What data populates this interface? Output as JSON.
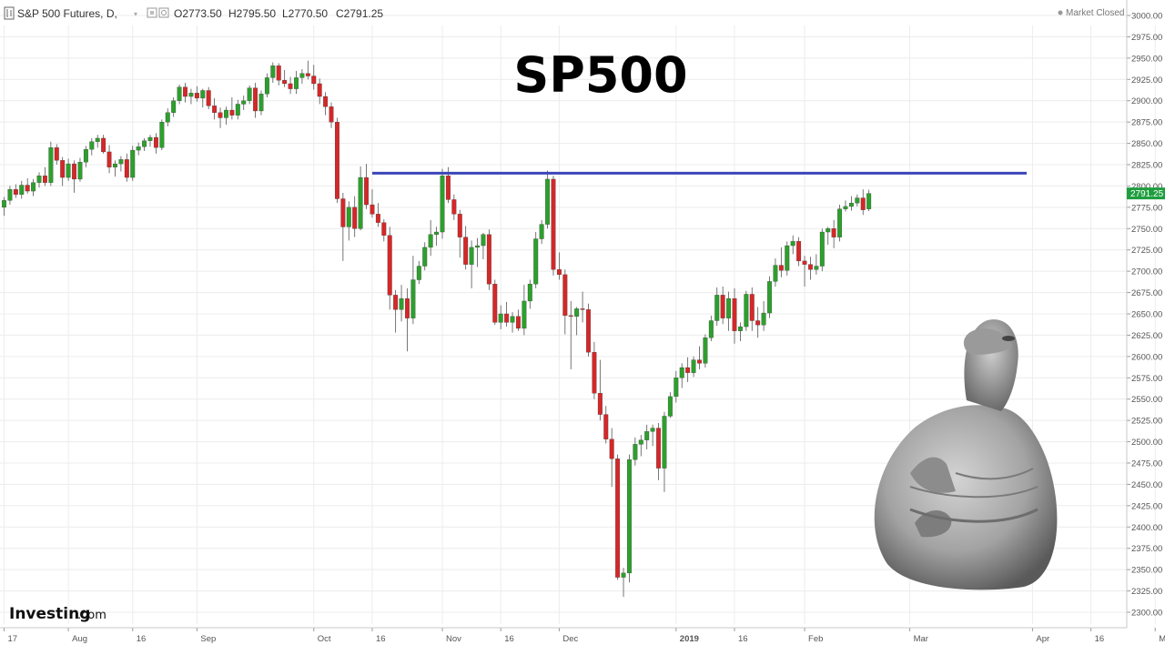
{
  "header": {
    "symbol": "S&P 500 Futures, D,",
    "open": "O2773.50",
    "high": "H2795.50",
    "low": "L2770.50",
    "close": "C2791.25",
    "status": "Market Closed"
  },
  "title": "SP500",
  "logo": {
    "brand": "Investing",
    "suffix": ".com"
  },
  "colors": {
    "up": "#2ca02c",
    "down": "#d62728",
    "resistance": "#3b47b8",
    "grid": "#ececec",
    "last_label_bg": "#1e9e3e"
  },
  "last_price_label": "2791.25",
  "chart_data": {
    "type": "candlestick",
    "y_axis": {
      "min": 2300,
      "max": 3000,
      "side": "right",
      "ticks": [
        "3000.00",
        "2975.00",
        "2950.00",
        "2925.00",
        "2900.00",
        "2875.00",
        "2850.00",
        "2825.00",
        "2800.00",
        "2775.00",
        "2750.00",
        "2725.00",
        "2700.00",
        "2675.00",
        "2650.00",
        "2625.00",
        "2600.00",
        "2575.00",
        "2550.00",
        "2525.00",
        "2500.00",
        "2475.00",
        "2450.00",
        "2425.00",
        "2400.00",
        "2375.00",
        "2350.00",
        "2325.00",
        "2300.00"
      ]
    },
    "x_axis": {
      "ticks": [
        {
          "label": "17",
          "bold": false,
          "bar": 0
        },
        {
          "label": "Aug",
          "bold": false,
          "bar": 11
        },
        {
          "label": "16",
          "bold": false,
          "bar": 22
        },
        {
          "label": "Sep",
          "bold": false,
          "bar": 33
        },
        {
          "label": "Oct",
          "bold": false,
          "bar": 53
        },
        {
          "label": "16",
          "bold": false,
          "bar": 63
        },
        {
          "label": "Nov",
          "bold": false,
          "bar": 75
        },
        {
          "label": "16",
          "bold": false,
          "bar": 85
        },
        {
          "label": "Dec",
          "bold": false,
          "bar": 95
        },
        {
          "label": "2019",
          "bold": true,
          "bar": 115
        },
        {
          "label": "16",
          "bold": false,
          "bar": 125
        },
        {
          "label": "Feb",
          "bold": false,
          "bar": 137
        },
        {
          "label": "Mar",
          "bold": false,
          "bar": 155
        },
        {
          "label": "Apr",
          "bold": false,
          "bar": 176
        },
        {
          "label": "16",
          "bold": false,
          "bar": 186
        },
        {
          "label": "May",
          "bold": false,
          "bar": 197
        }
      ]
    },
    "resistance_level": {
      "value": 2815,
      "from_bar": 63,
      "to_bar": 175
    },
    "candles": [
      [
        2775,
        2787,
        2765,
        2783
      ],
      [
        2783,
        2800,
        2778,
        2796
      ],
      [
        2796,
        2802,
        2786,
        2790
      ],
      [
        2790,
        2806,
        2785,
        2801
      ],
      [
        2801,
        2809,
        2791,
        2794
      ],
      [
        2794,
        2808,
        2788,
        2804
      ],
      [
        2804,
        2816,
        2798,
        2812
      ],
      [
        2812,
        2822,
        2800,
        2804
      ],
      [
        2804,
        2852,
        2800,
        2845
      ],
      [
        2845,
        2849,
        2825,
        2830
      ],
      [
        2830,
        2834,
        2800,
        2810
      ],
      [
        2810,
        2832,
        2806,
        2826
      ],
      [
        2826,
        2830,
        2792,
        2808
      ],
      [
        2808,
        2833,
        2805,
        2828
      ],
      [
        2828,
        2847,
        2822,
        2843
      ],
      [
        2843,
        2856,
        2836,
        2852
      ],
      [
        2852,
        2860,
        2845,
        2856
      ],
      [
        2856,
        2860,
        2838,
        2840
      ],
      [
        2840,
        2848,
        2815,
        2822
      ],
      [
        2822,
        2830,
        2811,
        2826
      ],
      [
        2826,
        2835,
        2817,
        2831
      ],
      [
        2831,
        2838,
        2805,
        2810
      ],
      [
        2810,
        2847,
        2806,
        2842
      ],
      [
        2842,
        2851,
        2836,
        2846
      ],
      [
        2846,
        2856,
        2841,
        2853
      ],
      [
        2853,
        2860,
        2846,
        2857
      ],
      [
        2857,
        2862,
        2838,
        2845
      ],
      [
        2845,
        2878,
        2842,
        2875
      ],
      [
        2875,
        2891,
        2870,
        2886
      ],
      [
        2886,
        2904,
        2881,
        2900
      ],
      [
        2900,
        2919,
        2896,
        2916
      ],
      [
        2916,
        2921,
        2898,
        2905
      ],
      [
        2905,
        2914,
        2896,
        2909
      ],
      [
        2909,
        2917,
        2899,
        2903
      ],
      [
        2903,
        2914,
        2892,
        2912
      ],
      [
        2912,
        2916,
        2890,
        2894
      ],
      [
        2894,
        2903,
        2878,
        2886
      ],
      [
        2886,
        2892,
        2868,
        2880
      ],
      [
        2880,
        2893,
        2872,
        2889
      ],
      [
        2889,
        2904,
        2878,
        2883
      ],
      [
        2883,
        2901,
        2878,
        2896
      ],
      [
        2896,
        2906,
        2889,
        2900
      ],
      [
        2900,
        2918,
        2896,
        2915
      ],
      [
        2915,
        2921,
        2880,
        2888
      ],
      [
        2888,
        2912,
        2883,
        2908
      ],
      [
        2908,
        2932,
        2904,
        2927
      ],
      [
        2927,
        2945,
        2921,
        2941
      ],
      [
        2941,
        2944,
        2918,
        2924
      ],
      [
        2924,
        2936,
        2916,
        2920
      ],
      [
        2920,
        2928,
        2908,
        2914
      ],
      [
        2914,
        2935,
        2908,
        2927
      ],
      [
        2927,
        2937,
        2920,
        2932
      ],
      [
        2932,
        2947,
        2925,
        2929
      ],
      [
        2929,
        2942,
        2913,
        2920
      ],
      [
        2920,
        2926,
        2896,
        2905
      ],
      [
        2905,
        2910,
        2883,
        2893
      ],
      [
        2893,
        2898,
        2868,
        2875
      ],
      [
        2875,
        2880,
        2780,
        2785
      ],
      [
        2785,
        2792,
        2712,
        2752
      ],
      [
        2752,
        2782,
        2736,
        2775
      ],
      [
        2775,
        2788,
        2740,
        2750
      ],
      [
        2750,
        2823,
        2748,
        2810
      ],
      [
        2810,
        2826,
        2773,
        2778
      ],
      [
        2778,
        2796,
        2763,
        2767
      ],
      [
        2767,
        2780,
        2752,
        2757
      ],
      [
        2757,
        2761,
        2735,
        2742
      ],
      [
        2742,
        2752,
        2655,
        2672
      ],
      [
        2672,
        2678,
        2628,
        2655
      ],
      [
        2655,
        2684,
        2641,
        2668
      ],
      [
        2668,
        2680,
        2606,
        2645
      ],
      [
        2645,
        2718,
        2638,
        2690
      ],
      [
        2690,
        2712,
        2685,
        2706
      ],
      [
        2706,
        2734,
        2701,
        2728
      ],
      [
        2728,
        2760,
        2718,
        2743
      ],
      [
        2743,
        2752,
        2730,
        2746
      ],
      [
        2746,
        2820,
        2738,
        2812
      ],
      [
        2812,
        2822,
        2780,
        2784
      ],
      [
        2784,
        2790,
        2760,
        2767
      ],
      [
        2767,
        2772,
        2716,
        2740
      ],
      [
        2740,
        2753,
        2702,
        2708
      ],
      [
        2708,
        2736,
        2680,
        2728
      ],
      [
        2728,
        2739,
        2705,
        2730
      ],
      [
        2730,
        2745,
        2714,
        2743
      ],
      [
        2743,
        2749,
        2678,
        2685
      ],
      [
        2685,
        2690,
        2637,
        2640
      ],
      [
        2640,
        2660,
        2632,
        2650
      ],
      [
        2650,
        2664,
        2635,
        2640
      ],
      [
        2640,
        2652,
        2628,
        2647
      ],
      [
        2647,
        2655,
        2630,
        2633
      ],
      [
        2633,
        2684,
        2625,
        2665
      ],
      [
        2665,
        2690,
        2656,
        2685
      ],
      [
        2685,
        2746,
        2680,
        2738
      ],
      [
        2738,
        2760,
        2732,
        2755
      ],
      [
        2755,
        2818,
        2750,
        2808
      ],
      [
        2808,
        2812,
        2695,
        2702
      ],
      [
        2702,
        2722,
        2690,
        2696
      ],
      [
        2696,
        2702,
        2626,
        2648
      ],
      [
        2648,
        2665,
        2585,
        2647
      ],
      [
        2647,
        2658,
        2625,
        2656
      ],
      [
        2656,
        2676,
        2640,
        2655
      ],
      [
        2655,
        2662,
        2600,
        2605
      ],
      [
        2605,
        2617,
        2550,
        2557
      ],
      [
        2557,
        2596,
        2525,
        2532
      ],
      [
        2532,
        2542,
        2498,
        2503
      ],
      [
        2503,
        2516,
        2447,
        2480
      ],
      [
        2480,
        2485,
        2338,
        2341
      ],
      [
        2341,
        2352,
        2318,
        2346
      ],
      [
        2346,
        2485,
        2335,
        2479
      ],
      [
        2479,
        2505,
        2472,
        2497
      ],
      [
        2497,
        2508,
        2483,
        2502
      ],
      [
        2502,
        2520,
        2491,
        2512
      ],
      [
        2512,
        2520,
        2495,
        2516
      ],
      [
        2516,
        2522,
        2455,
        2469
      ],
      [
        2469,
        2535,
        2441,
        2530
      ],
      [
        2530,
        2558,
        2528,
        2553
      ],
      [
        2553,
        2583,
        2546,
        2575
      ],
      [
        2575,
        2592,
        2563,
        2587
      ],
      [
        2587,
        2599,
        2570,
        2581
      ],
      [
        2581,
        2600,
        2576,
        2596
      ],
      [
        2596,
        2612,
        2585,
        2592
      ],
      [
        2592,
        2626,
        2587,
        2622
      ],
      [
        2622,
        2648,
        2618,
        2642
      ],
      [
        2642,
        2681,
        2636,
        2672
      ],
      [
        2672,
        2682,
        2638,
        2645
      ],
      [
        2645,
        2676,
        2630,
        2668
      ],
      [
        2668,
        2680,
        2615,
        2630
      ],
      [
        2630,
        2640,
        2618,
        2635
      ],
      [
        2635,
        2677,
        2630,
        2673
      ],
      [
        2673,
        2681,
        2630,
        2642
      ],
      [
        2642,
        2658,
        2622,
        2637
      ],
      [
        2637,
        2665,
        2630,
        2651
      ],
      [
        2651,
        2694,
        2645,
        2688
      ],
      [
        2688,
        2715,
        2682,
        2707
      ],
      [
        2707,
        2728,
        2693,
        2701
      ],
      [
        2701,
        2735,
        2695,
        2730
      ],
      [
        2730,
        2742,
        2720,
        2735
      ],
      [
        2735,
        2740,
        2706,
        2712
      ],
      [
        2712,
        2718,
        2682,
        2708
      ],
      [
        2708,
        2717,
        2690,
        2702
      ],
      [
        2702,
        2720,
        2696,
        2706
      ],
      [
        2706,
        2750,
        2700,
        2746
      ],
      [
        2746,
        2752,
        2731,
        2750
      ],
      [
        2750,
        2760,
        2727,
        2740
      ],
      [
        2740,
        2778,
        2735,
        2773
      ],
      [
        2773,
        2783,
        2770,
        2776
      ],
      [
        2776,
        2788,
        2771,
        2780
      ],
      [
        2780,
        2790,
        2776,
        2786
      ],
      [
        2786,
        2796,
        2766,
        2772
      ],
      [
        2773,
        2795.5,
        2770.5,
        2791.25
      ]
    ]
  }
}
